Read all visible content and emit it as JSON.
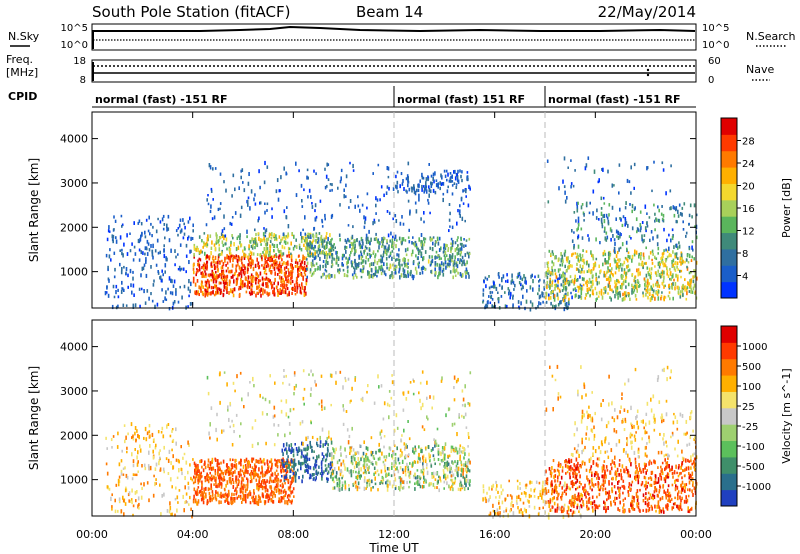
{
  "header": {
    "title": "South Pole Station (fitACF)",
    "beam": "Beam 14",
    "date": "22/May/2014"
  },
  "panels": {
    "nsky_label": "N.Sky",
    "nsearch_label": "N.Search",
    "nsky_ticks": [
      "10^5",
      "10^0"
    ],
    "nsearch_ticks": [
      "10^5",
      "10^0"
    ],
    "freq_label_1": "Freq.",
    "freq_label_2": "[MHz]",
    "freq_ticks": [
      "18",
      "8"
    ],
    "nave_label": "Nave",
    "nave_ticks": [
      "60",
      "0"
    ],
    "cpid_label": "CPID",
    "modes": [
      {
        "text": "normal (fast) -151 RF",
        "start_hour": 0
      },
      {
        "text": "normal (fast) 151 RF",
        "start_hour": 12
      },
      {
        "text": "normal (fast) -151 RF",
        "start_hour": 18
      }
    ]
  },
  "chart_data": [
    {
      "type": "heatmap",
      "quantity": "Power",
      "ylabel": "Slant Range [km]",
      "xlabel": "Time UT",
      "ylim": [
        180,
        4600
      ],
      "xlim": [
        0,
        24
      ],
      "yticks": [
        "1000",
        "2000",
        "3000",
        "4000"
      ],
      "xticks": [
        "00:00",
        "04:00",
        "08:00",
        "12:00",
        "16:00",
        "20:00",
        "00:00"
      ],
      "colorbar": {
        "label": "Power [dB]",
        "ticks": [
          "4",
          "8",
          "12",
          "16",
          "20",
          "24",
          "28"
        ],
        "colors": [
          "#0033ff",
          "#1a5ec9",
          "#2f6fa0",
          "#3f8a7a",
          "#5ab55c",
          "#a8d05a",
          "#f4d82e",
          "#ffb000",
          "#ff7a00",
          "#ff3a00",
          "#e00000"
        ]
      },
      "regions": [
        {
          "t0": 0.5,
          "t1": 4.0,
          "r0": 200,
          "r1": 2300,
          "v0": 0.05,
          "v1": 0.25,
          "density": 0.18
        },
        {
          "t0": 4.0,
          "t1": 8.5,
          "r0": 500,
          "r1": 1400,
          "v0": 0.7,
          "v1": 1.0,
          "density": 0.85
        },
        {
          "t0": 4.0,
          "t1": 9.5,
          "r0": 1400,
          "r1": 1900,
          "v0": 0.3,
          "v1": 0.7,
          "density": 0.55
        },
        {
          "t0": 8.5,
          "t1": 15.0,
          "r0": 900,
          "r1": 1800,
          "v0": 0.1,
          "v1": 0.55,
          "density": 0.6
        },
        {
          "t0": 4.5,
          "t1": 15.0,
          "r0": 1800,
          "r1": 3500,
          "v0": 0.05,
          "v1": 0.25,
          "density": 0.08
        },
        {
          "t0": 12.0,
          "t1": 15.0,
          "r0": 2800,
          "r1": 3300,
          "v0": 0.05,
          "v1": 0.25,
          "density": 0.35
        },
        {
          "t0": 15.5,
          "t1": 19.5,
          "r0": 180,
          "r1": 1000,
          "v0": 0.05,
          "v1": 0.35,
          "density": 0.3
        },
        {
          "t0": 18.0,
          "t1": 24.0,
          "r0": 400,
          "r1": 1500,
          "v0": 0.3,
          "v1": 0.75,
          "density": 0.55
        },
        {
          "t0": 19.0,
          "t1": 24.0,
          "r0": 1500,
          "r1": 2600,
          "v0": 0.05,
          "v1": 0.45,
          "density": 0.2
        },
        {
          "t0": 18.0,
          "t1": 23.0,
          "r0": 2600,
          "r1": 3600,
          "v0": 0.05,
          "v1": 0.3,
          "density": 0.05
        }
      ]
    },
    {
      "type": "heatmap",
      "quantity": "Velocity",
      "ylabel": "Slant Range [km]",
      "xlabel": "Time UT",
      "ylim": [
        180,
        4600
      ],
      "xlim": [
        0,
        24
      ],
      "yticks": [
        "1000",
        "2000",
        "3000",
        "4000"
      ],
      "xticks": [
        "00:00",
        "04:00",
        "08:00",
        "12:00",
        "16:00",
        "20:00",
        "00:00"
      ],
      "colorbar": {
        "label": "Velocity [m s^-1]",
        "ticks": [
          "1000",
          "500",
          "100",
          "25",
          "-25",
          "-100",
          "-500",
          "-1000"
        ],
        "colors": [
          "#2040c0",
          "#2a6f8c",
          "#3f8f6a",
          "#5cc05c",
          "#9ed070",
          "#c8c8c8",
          "#f4e36b",
          "#ffb000",
          "#ff7a00",
          "#ff3a00",
          "#e00000"
        ]
      },
      "regions": [
        {
          "t0": 0.5,
          "t1": 4.0,
          "r0": 200,
          "r1": 2300,
          "v0": 0.5,
          "v1": 0.8,
          "density": 0.16
        },
        {
          "t0": 4.0,
          "t1": 8.0,
          "r0": 500,
          "r1": 1500,
          "v0": 0.72,
          "v1": 0.9,
          "density": 0.85
        },
        {
          "t0": 7.5,
          "t1": 9.5,
          "r0": 1000,
          "r1": 1900,
          "v0": 0.0,
          "v1": 0.25,
          "density": 0.6
        },
        {
          "t0": 9.5,
          "t1": 15.0,
          "r0": 800,
          "r1": 1800,
          "v0": 0.15,
          "v1": 0.75,
          "density": 0.55
        },
        {
          "t0": 4.5,
          "t1": 15.0,
          "r0": 1800,
          "r1": 3500,
          "v0": 0.35,
          "v1": 0.75,
          "density": 0.07
        },
        {
          "t0": 15.5,
          "t1": 19.5,
          "r0": 180,
          "r1": 1000,
          "v0": 0.5,
          "v1": 0.8,
          "density": 0.28
        },
        {
          "t0": 18.0,
          "t1": 24.0,
          "r0": 300,
          "r1": 1500,
          "v0": 0.7,
          "v1": 0.95,
          "density": 0.5
        },
        {
          "t0": 19.0,
          "t1": 24.0,
          "r0": 1500,
          "r1": 2600,
          "v0": 0.5,
          "v1": 0.8,
          "density": 0.18
        },
        {
          "t0": 18.0,
          "t1": 23.0,
          "r0": 2600,
          "r1": 3600,
          "v0": 0.5,
          "v1": 0.8,
          "density": 0.05
        }
      ]
    }
  ]
}
